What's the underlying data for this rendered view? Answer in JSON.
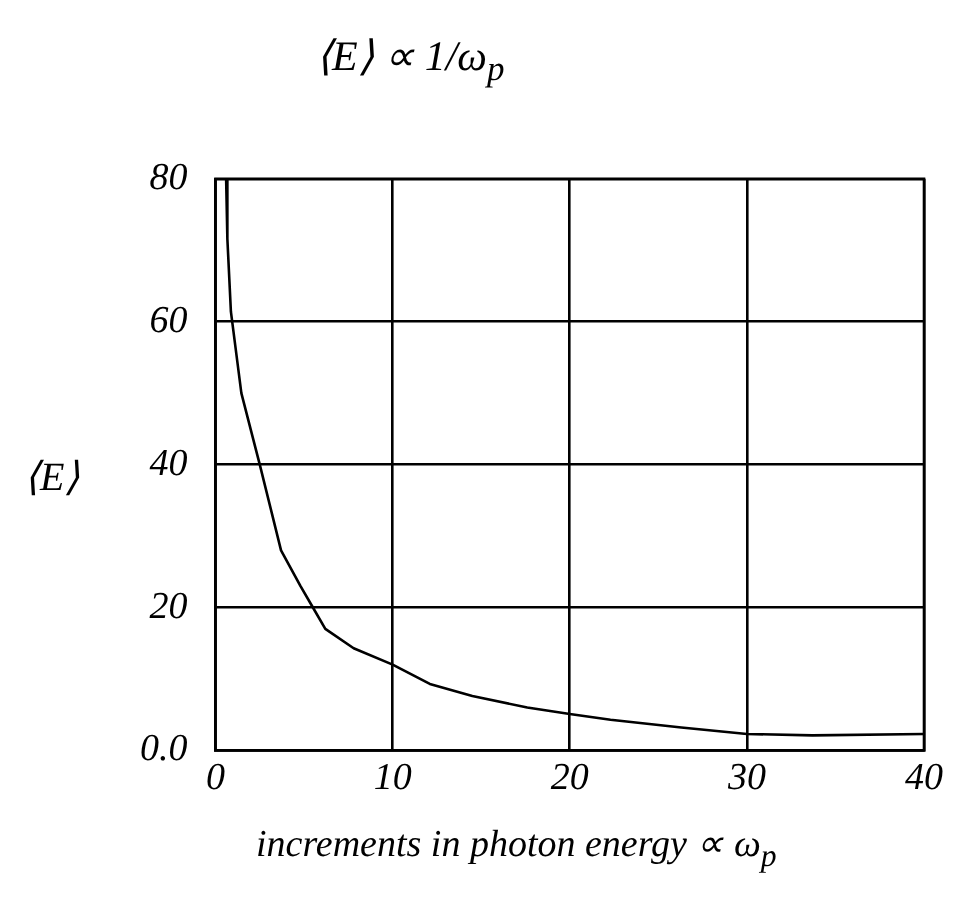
{
  "chart_data": {
    "type": "line",
    "title": "⟨E⟩ ∝ 1/ω$_{p}$",
    "xlabel": "increments in photon energy ∝ ω$_{p}$",
    "ylabel": "⟨E⟩",
    "series": [
      {
        "color": "#000000",
        "x": [
          0.6,
          0.67,
          0.87,
          1.46,
          2.5,
          3.2,
          3.7,
          4.8,
          5.5,
          6.2,
          7.8,
          10,
          12.1,
          14.5,
          17.6,
          20,
          22.3,
          26.3,
          30,
          33.7,
          40
        ],
        "values": [
          80,
          71.6,
          61.4,
          50,
          40,
          33,
          28,
          23,
          20,
          17,
          14.3,
          12,
          9.3,
          7.6,
          6,
          5.1,
          4.3,
          3.2,
          2.3,
          2.1,
          2.3
        ]
      }
    ],
    "xlim": [
      0,
      40
    ],
    "xticks": [
      0,
      10,
      20,
      30,
      40
    ],
    "ylim": [
      0,
      80
    ],
    "yticks": [
      {
        "value": 0,
        "label": "0.0"
      },
      20,
      40,
      60,
      80
    ],
    "grid": true,
    "legend": false,
    "marker": "none",
    "line_style": "solid"
  }
}
